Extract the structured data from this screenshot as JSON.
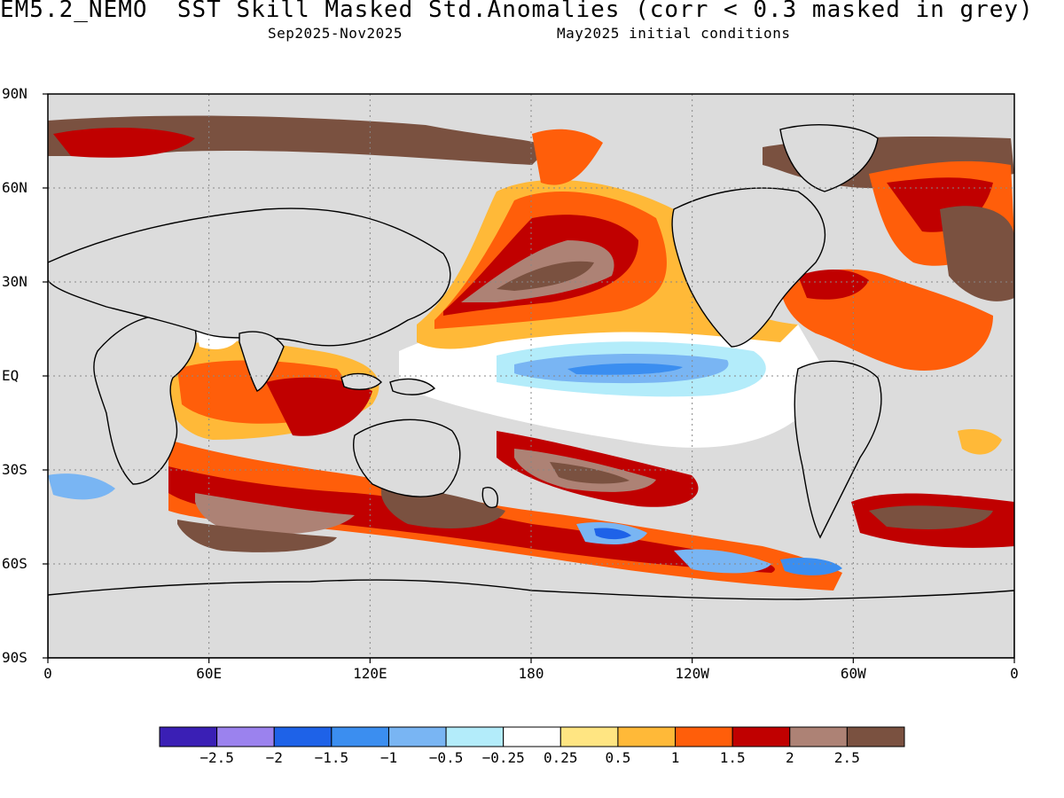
{
  "title": "EM5.2_NEMO  SST Skill Masked Std.Anomalies (corr < 0.3 masked in grey)",
  "period": "Sep2025-Nov2025",
  "initial_conditions": "May2025 initial conditions",
  "map": {
    "projection": "equirectangular",
    "lon_range": [
      0,
      360
    ],
    "lat_range": [
      -90,
      90
    ],
    "gridlines": "dotted",
    "mask_color": "#dcdcdc",
    "coast_color": "#000000",
    "lat_ticks": [
      {
        "value": 90,
        "label": "90N"
      },
      {
        "value": 60,
        "label": "60N"
      },
      {
        "value": 30,
        "label": "30N"
      },
      {
        "value": 0,
        "label": "EQ"
      },
      {
        "value": -30,
        "label": "30S"
      },
      {
        "value": -60,
        "label": "60S"
      },
      {
        "value": -90,
        "label": "90S"
      }
    ],
    "lon_ticks": [
      {
        "value": 0,
        "label": "0"
      },
      {
        "value": 60,
        "label": "60E"
      },
      {
        "value": 120,
        "label": "120E"
      },
      {
        "value": 180,
        "label": "180"
      },
      {
        "value": 240,
        "label": "120W"
      },
      {
        "value": 300,
        "label": "60W"
      },
      {
        "value": 360,
        "label": "0"
      }
    ]
  },
  "colorbar": {
    "colors": [
      "#3a1fb5",
      "#9b82ee",
      "#1e62e8",
      "#3b8ef0",
      "#79b5f3",
      "#b3ecfa",
      "#ffffff",
      "#ffe582",
      "#ffb938",
      "#ff5e0a",
      "#c00000",
      "#ad8275",
      "#7a5140"
    ],
    "labels": [
      "-2.5",
      "-2",
      "-1.5",
      "-1",
      "-0.5",
      "-0.25",
      "0.25",
      "0.5",
      "1",
      "1.5",
      "2",
      "2.5"
    ]
  }
}
